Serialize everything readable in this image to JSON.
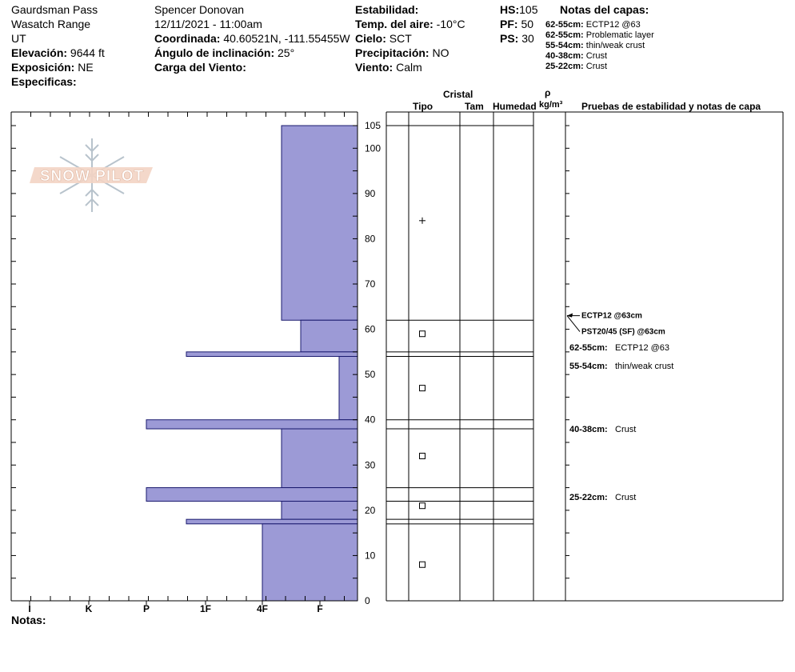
{
  "header": {
    "location": "Gaurdsman Pass",
    "range": "Wasatch Range",
    "state": "UT",
    "elevation_label": "Elevación:",
    "elevation": "9644 ft",
    "aspect_label": "Exposición:",
    "aspect": "NE",
    "specifics_label": "Especificas:",
    "observer": "Spencer Donovan",
    "datetime": "12/11/2021 - 11:00am",
    "coord_label": "Coordinada:",
    "coord": "40.60521N, -111.55455W",
    "slope_label": "Ángulo de inclinación:",
    "slope": "25°",
    "wind_load_label": "Carga del Viento:",
    "stability_label": "Estabilidad:",
    "air_temp_label": "Temp. del aire:",
    "air_temp": "-10°C",
    "sky_label": "Cielo:",
    "sky": "SCT",
    "precip_label": "Precipitación:",
    "precip": "NO",
    "wind_label": "Viento:",
    "wind": "Calm",
    "hs_label": "HS:",
    "hs": "105",
    "pf_label": "PF:",
    "pf": "50",
    "ps_label": "PS:",
    "ps": "30",
    "layer_notes_title": "Notas del capas:",
    "layer_notes": [
      {
        "range": "62-55cm:",
        "text": "ECTP12 @63"
      },
      {
        "range": "62-55cm:",
        "text": "Problematic layer"
      },
      {
        "range": "55-54cm:",
        "text": "thin/weak crust"
      },
      {
        "range": "40-38cm:",
        "text": "Crust"
      },
      {
        "range": "25-22cm:",
        "text": "Crust"
      }
    ]
  },
  "logo_text": "SNOW PILOT",
  "notes_label": "Notas:",
  "columns": {
    "crystal": "Cristal",
    "type": "Tipo",
    "size": "Tam",
    "moisture": "Humedad",
    "rho": "ρ",
    "density_unit": "kg/m³",
    "tests": "Pruebas de estabilidad y notas de capa"
  },
  "chart_data": {
    "type": "bar",
    "orientation": "horizontal",
    "x_axis_categories": [
      "I",
      "K",
      "P",
      "1F",
      "4F",
      "F"
    ],
    "y_axis": {
      "min": 0,
      "max": 105,
      "ticks": [
        0,
        10,
        20,
        30,
        40,
        50,
        60,
        70,
        80,
        90,
        100,
        105
      ]
    },
    "hardness_layers": [
      {
        "top": 105,
        "bottom": 62,
        "hardness": "4F-"
      },
      {
        "top": 62,
        "bottom": 55,
        "hardness": "F+"
      },
      {
        "top": 55,
        "bottom": 54,
        "hardness": "1F+"
      },
      {
        "top": 54,
        "bottom": 40,
        "hardness": "F-"
      },
      {
        "top": 40,
        "bottom": 38,
        "hardness": "P"
      },
      {
        "top": 38,
        "bottom": 25,
        "hardness": "4F-"
      },
      {
        "top": 25,
        "bottom": 22,
        "hardness": "P"
      },
      {
        "top": 22,
        "bottom": 18,
        "hardness": "4F-"
      },
      {
        "top": 18,
        "bottom": 17,
        "hardness": "1F+"
      },
      {
        "top": 17,
        "bottom": 0,
        "hardness": "4F"
      }
    ],
    "layer_boundaries": [
      105,
      62,
      55,
      54,
      40,
      38,
      25,
      22,
      18,
      17
    ],
    "grain_symbols": [
      {
        "height": 84,
        "symbol": "+"
      },
      {
        "height": 59,
        "symbol": "□"
      },
      {
        "height": 47,
        "symbol": "□"
      },
      {
        "height": 32,
        "symbol": "□"
      },
      {
        "height": 21,
        "symbol": "□"
      },
      {
        "height": 8,
        "symbol": "□"
      }
    ],
    "tests": [
      {
        "height": 63,
        "text": "ECTP12 @63cm"
      },
      {
        "height": 63,
        "text": "PST20/45 (SF) @63cm"
      }
    ],
    "layer_notes": [
      {
        "height": 56,
        "range": "62-55cm:",
        "text": "ECTP12 @63"
      },
      {
        "height": 52,
        "range": "55-54cm:",
        "text": "thin/weak crust"
      },
      {
        "height": 38,
        "range": "40-38cm:",
        "text": "Crust"
      },
      {
        "height": 23,
        "range": "25-22cm:",
        "text": "Crust"
      }
    ],
    "bar_color": "#9c9ad6"
  }
}
